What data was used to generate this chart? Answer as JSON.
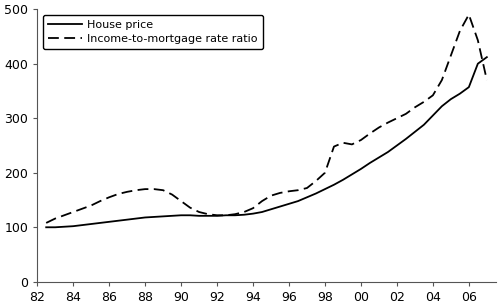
{
  "x_ticks": [
    "82",
    "84",
    "86",
    "88",
    "90",
    "92",
    "94",
    "96",
    "98",
    "00",
    "02",
    "04",
    "06"
  ],
  "x_tick_values": [
    1982,
    1984,
    1986,
    1988,
    1990,
    1992,
    1994,
    1996,
    1998,
    2000,
    2002,
    2004,
    2006
  ],
  "ylim": [
    0,
    500
  ],
  "yticks": [
    0,
    100,
    200,
    300,
    400,
    500
  ],
  "xlim": [
    1982,
    2007.5
  ],
  "house_price": {
    "x": [
      1982.5,
      1983.0,
      1983.5,
      1984.0,
      1984.5,
      1985.0,
      1985.5,
      1986.0,
      1986.5,
      1987.0,
      1987.5,
      1988.0,
      1988.5,
      1989.0,
      1989.5,
      1990.0,
      1990.5,
      1991.0,
      1991.5,
      1992.0,
      1992.5,
      1993.0,
      1993.5,
      1994.0,
      1994.5,
      1995.0,
      1995.5,
      1996.0,
      1996.5,
      1997.0,
      1997.5,
      1998.0,
      1998.5,
      1999.0,
      1999.5,
      2000.0,
      2000.5,
      2001.0,
      2001.5,
      2002.0,
      2002.5,
      2003.0,
      2003.5,
      2004.0,
      2004.5,
      2005.0,
      2005.5,
      2006.0,
      2006.5,
      2007.0
    ],
    "y": [
      100,
      100,
      101,
      102,
      104,
      106,
      108,
      110,
      112,
      114,
      116,
      118,
      119,
      120,
      121,
      122,
      122,
      121,
      121,
      121,
      122,
      122,
      123,
      125,
      128,
      133,
      138,
      143,
      148,
      155,
      162,
      170,
      178,
      187,
      197,
      207,
      218,
      228,
      238,
      250,
      262,
      275,
      288,
      305,
      322,
      335,
      345,
      357,
      400,
      412
    ],
    "color": "#000000",
    "linestyle": "-",
    "linewidth": 1.3,
    "label": "House price"
  },
  "income_ratio": {
    "x": [
      1982.5,
      1983.0,
      1983.5,
      1984.0,
      1984.5,
      1985.0,
      1985.5,
      1986.0,
      1986.5,
      1987.0,
      1987.5,
      1988.0,
      1988.5,
      1989.0,
      1989.5,
      1990.0,
      1990.5,
      1991.0,
      1991.5,
      1992.0,
      1992.5,
      1993.0,
      1993.5,
      1994.0,
      1994.5,
      1995.0,
      1995.5,
      1996.0,
      1996.5,
      1997.0,
      1997.5,
      1998.0,
      1998.5,
      1999.0,
      1999.5,
      2000.0,
      2000.5,
      2001.0,
      2001.5,
      2002.0,
      2002.5,
      2003.0,
      2003.5,
      2004.0,
      2004.5,
      2005.0,
      2005.5,
      2006.0,
      2006.5,
      2007.0
    ],
    "y": [
      108,
      116,
      122,
      128,
      134,
      140,
      148,
      155,
      161,
      165,
      168,
      170,
      170,
      168,
      160,
      148,
      136,
      128,
      124,
      122,
      122,
      124,
      128,
      135,
      148,
      158,
      163,
      166,
      168,
      172,
      185,
      200,
      248,
      255,
      252,
      260,
      272,
      283,
      292,
      300,
      308,
      320,
      330,
      342,
      370,
      415,
      460,
      490,
      443,
      370
    ],
    "color": "#000000",
    "linestyle": "--",
    "linewidth": 1.3,
    "dashes": [
      6,
      3
    ],
    "label": "Income-to-mortgage rate ratio"
  },
  "background_color": "#ffffff",
  "spine_color": "#555555"
}
